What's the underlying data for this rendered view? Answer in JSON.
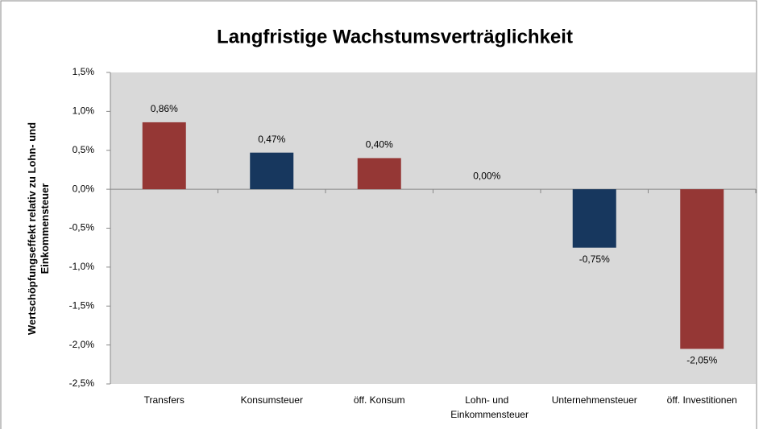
{
  "chart_data": {
    "type": "bar",
    "title": "Langfristige Wachstumsverträglichkeit",
    "y_label": "Wertschöpfungseffekt relativ zu Lohn- und Einkommensteuer",
    "categories": [
      "Transfers",
      "Konsumsteuer",
      "öff. Konsum",
      "Lohn- und Einkommensteuer",
      "Unternehmensteuer",
      "öff. Investitionen"
    ],
    "values": [
      0.86,
      0.47,
      0.4,
      0.0,
      -0.75,
      -2.05
    ],
    "value_labels": [
      "0,86%",
      "0,47%",
      "0,40%",
      "0,00%",
      "-0,75%",
      "-2,05%"
    ],
    "colors": [
      "#953735",
      "#17375e",
      "#953735",
      "#953735",
      "#17375e",
      "#953735"
    ],
    "ylim": [
      -2.5,
      1.5
    ],
    "yticks": [
      {
        "value": -2.5,
        "label": "-2,5%"
      },
      {
        "value": -2.0,
        "label": "-2,0%"
      },
      {
        "value": -1.5,
        "label": "-1,5%"
      },
      {
        "value": -1.0,
        "label": "-1,0%"
      },
      {
        "value": -0.5,
        "label": "-0,5%"
      },
      {
        "value": 0.0,
        "label": "0,0%"
      },
      {
        "value": 0.5,
        "label": "0,5%"
      },
      {
        "value": 1.0,
        "label": "1,0%"
      },
      {
        "value": 1.5,
        "label": "1,5%"
      }
    ],
    "grid": false
  }
}
